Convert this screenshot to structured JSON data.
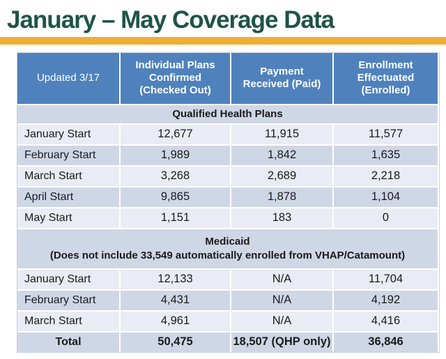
{
  "title": "January – May Coverage Data",
  "colors": {
    "title_green": "#1E5348",
    "gold_bar": "#EFAD33",
    "header_blue": "#4F81BD",
    "band_dark": "#CFD6E6",
    "band_light": "#E9ECF4"
  },
  "chart_data": {
    "type": "table",
    "title": "January – May Coverage Data",
    "updated_label": "Updated 3/17",
    "columns": [
      "Individual Plans Confirmed (Checked Out)",
      "Payment Received (Paid)",
      "Enrollment Effectuated (Enrolled)"
    ],
    "sections": [
      {
        "name": "Qualified Health Plans",
        "note": "",
        "rows": [
          [
            "January Start",
            "12,677",
            "11,915",
            "11,577"
          ],
          [
            "February Start",
            "1,989",
            "1,842",
            "1,635"
          ],
          [
            "March Start",
            "3,268",
            "2,689",
            "2,218"
          ],
          [
            "April Start",
            "9,865",
            "1,878",
            "1,104"
          ],
          [
            "May Start",
            "1,151",
            "183",
            "0"
          ]
        ]
      },
      {
        "name": "Medicaid",
        "note": "(Does not include 33,549 automatically enrolled from VHAP/Catamount)",
        "rows": [
          [
            "January Start",
            "12,133",
            "N/A",
            "11,704"
          ],
          [
            "February Start",
            "4,431",
            "N/A",
            "4,192"
          ],
          [
            "March Start",
            "4,961",
            "N/A",
            "4,416"
          ]
        ]
      }
    ],
    "total": [
      "Total",
      "50,475",
      "18,507 (QHP only)",
      "36,846"
    ]
  }
}
